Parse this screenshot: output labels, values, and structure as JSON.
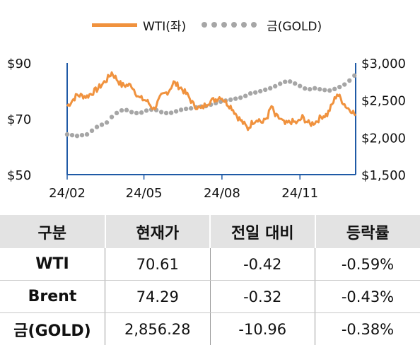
{
  "colors": {
    "wti": "#f0923e",
    "gold": "#a6a6a6",
    "axis": "#1f5aa6"
  },
  "chart_data": {
    "type": "line",
    "x_ticks": [
      "24/02",
      "24/05",
      "24/08",
      "24/11"
    ],
    "x_tick_index": [
      0,
      62,
      125,
      188
    ],
    "y_left": {
      "ticks": [
        "$50",
        "$70",
        "$90"
      ],
      "range": [
        50,
        90
      ]
    },
    "y_right": {
      "ticks": [
        "$1,500",
        "$2,000",
        "$2,500",
        "$3,000"
      ],
      "range": [
        1500,
        3000
      ]
    },
    "grid": false,
    "legend_position": "top",
    "series": [
      {
        "name": "WTI(좌)",
        "axis": "left",
        "style": "solid",
        "keypoints": [
          [
            0,
            74.5
          ],
          [
            8,
            78.5
          ],
          [
            16,
            78
          ],
          [
            24,
            80.5
          ],
          [
            32,
            84
          ],
          [
            36,
            86.5
          ],
          [
            44,
            82
          ],
          [
            52,
            82
          ],
          [
            58,
            77.5
          ],
          [
            64,
            76.5
          ],
          [
            70,
            73.5
          ],
          [
            76,
            78
          ],
          [
            82,
            80
          ],
          [
            86,
            83
          ],
          [
            92,
            81
          ],
          [
            98,
            78
          ],
          [
            102,
            75
          ],
          [
            108,
            73.5
          ],
          [
            114,
            76
          ],
          [
            120,
            77
          ],
          [
            124,
            78
          ],
          [
            128,
            76
          ],
          [
            133,
            74
          ],
          [
            138,
            70.5
          ],
          [
            142,
            68.5
          ],
          [
            146,
            66.5
          ],
          [
            150,
            69
          ],
          [
            154,
            70
          ],
          [
            158,
            68.5
          ],
          [
            162,
            71
          ],
          [
            165,
            74.5
          ],
          [
            168,
            71
          ],
          [
            172,
            70
          ],
          [
            176,
            68
          ],
          [
            181,
            69
          ],
          [
            186,
            68.5
          ],
          [
            190,
            70.5
          ],
          [
            196,
            68
          ],
          [
            201,
            69
          ],
          [
            206,
            71
          ],
          [
            210,
            71.5
          ],
          [
            214,
            75
          ],
          [
            218,
            79
          ],
          [
            222,
            76.5
          ],
          [
            226,
            74
          ],
          [
            230,
            73
          ],
          [
            233,
            71
          ]
        ]
      },
      {
        "name": "금(GOLD)",
        "axis": "right",
        "style": "dotted",
        "keypoints": [
          [
            0,
            2040
          ],
          [
            8,
            2020
          ],
          [
            16,
            2040
          ],
          [
            24,
            2140
          ],
          [
            32,
            2200
          ],
          [
            38,
            2310
          ],
          [
            46,
            2380
          ],
          [
            52,
            2340
          ],
          [
            58,
            2320
          ],
          [
            64,
            2360
          ],
          [
            70,
            2380
          ],
          [
            76,
            2340
          ],
          [
            82,
            2320
          ],
          [
            88,
            2350
          ],
          [
            94,
            2380
          ],
          [
            100,
            2390
          ],
          [
            106,
            2410
          ],
          [
            112,
            2420
          ],
          [
            118,
            2450
          ],
          [
            124,
            2480
          ],
          [
            130,
            2500
          ],
          [
            136,
            2520
          ],
          [
            142,
            2540
          ],
          [
            148,
            2590
          ],
          [
            154,
            2610
          ],
          [
            160,
            2640
          ],
          [
            166,
            2670
          ],
          [
            172,
            2720
          ],
          [
            178,
            2760
          ],
          [
            182,
            2740
          ],
          [
            188,
            2690
          ],
          [
            194,
            2640
          ],
          [
            200,
            2660
          ],
          [
            206,
            2640
          ],
          [
            212,
            2630
          ],
          [
            218,
            2660
          ],
          [
            224,
            2710
          ],
          [
            230,
            2790
          ],
          [
            233,
            2850
          ]
        ]
      }
    ]
  },
  "table": {
    "headers": [
      "구분",
      "현재가",
      "전일 대비",
      "등락률"
    ],
    "rows": [
      [
        "WTI",
        "70.61",
        "-0.42",
        "-0.59%"
      ],
      [
        "Brent",
        "74.29",
        "-0.32",
        "-0.43%"
      ],
      [
        "금(GOLD)",
        "2,856.28",
        "-10.96",
        "-0.38%"
      ]
    ]
  }
}
